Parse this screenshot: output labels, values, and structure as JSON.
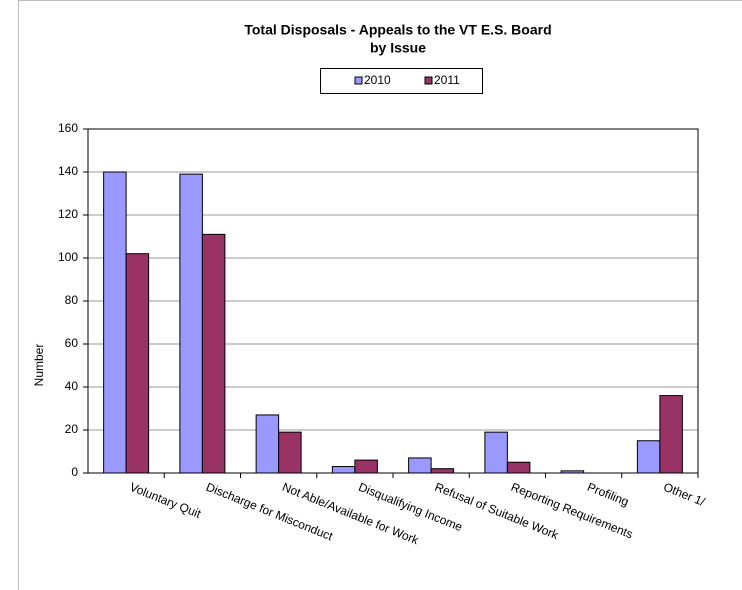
{
  "chart_data": {
    "type": "bar",
    "title": [
      "Total Disposals -  Appeals to the VT E.S. Board",
      "by Issue"
    ],
    "ylabel": "Number",
    "categories": [
      "Voluntary Quit",
      "Discharge for Misconduct",
      "Not Able/Available for Work",
      "Disqualifying Income",
      "Refusal of Suitable Work",
      "Reporting Requirements",
      "Profiling",
      "Other 1/"
    ],
    "series": [
      {
        "name": "2010",
        "color": "#9999ff",
        "values": [
          140,
          139,
          27,
          3,
          7,
          19,
          1,
          15
        ]
      },
      {
        "name": "2011",
        "color": "#993366",
        "values": [
          102,
          111,
          19,
          6,
          2,
          5,
          0,
          36
        ]
      }
    ],
    "ylim": [
      0,
      160
    ],
    "yticks": [
      0,
      20,
      40,
      60,
      80,
      100,
      120,
      140,
      160
    ],
    "grid": true,
    "legend": "top"
  }
}
